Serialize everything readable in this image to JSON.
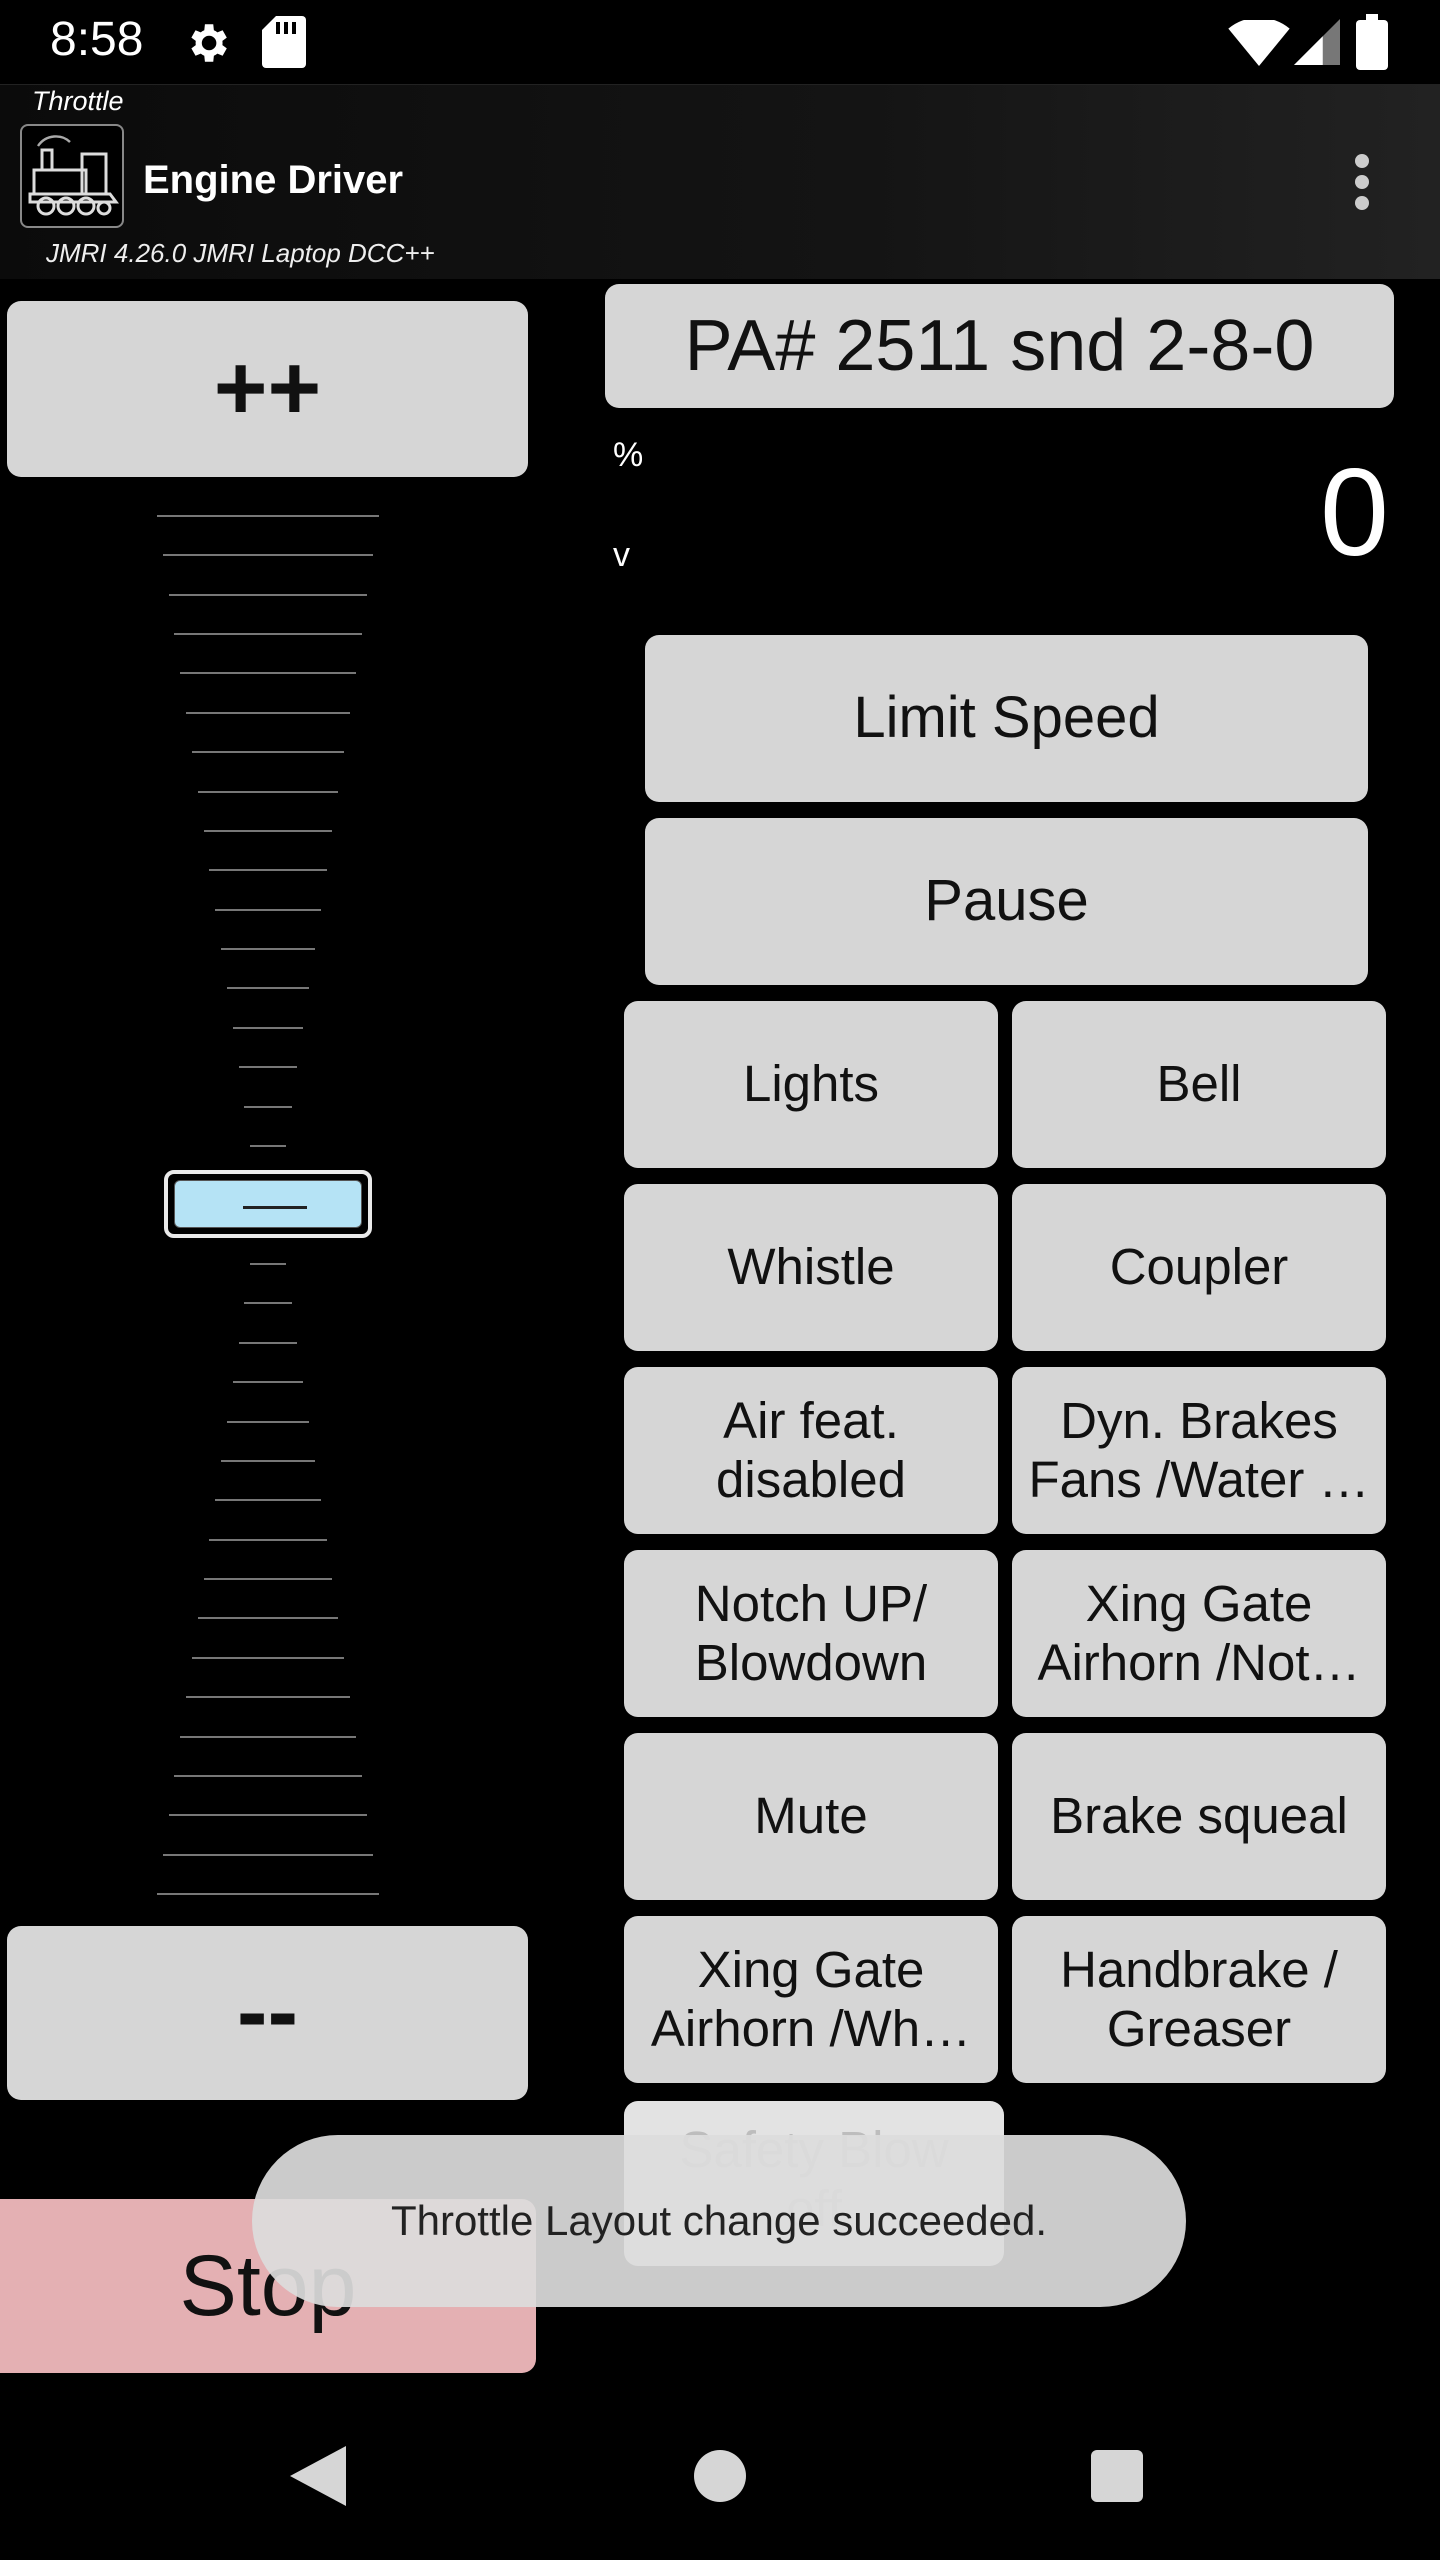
{
  "status_bar": {
    "time": "8:58",
    "icons": [
      "gear-icon",
      "sd-card-icon",
      "wifi-icon",
      "cell-signal-icon",
      "battery-icon"
    ]
  },
  "app_bar": {
    "subtitle": "Throttle",
    "title": "Engine Driver",
    "connection": "JMRI 4.26.0 JMRI Laptop DCC++",
    "logo": "locomotive-logo-icon",
    "menu": "overflow-menu-icon"
  },
  "throttle": {
    "speed_up_label": "++",
    "speed_down_label": "--",
    "stop_label": "Stop",
    "loco_label": "PA# 2511 snd 2-8-0",
    "speed_unit": "%",
    "direction": "v",
    "speed_value": "0",
    "slider_level": 0.5
  },
  "buttons": {
    "limit_speed": "Limit Speed",
    "pause": "Pause"
  },
  "functions": [
    {
      "left": "Lights",
      "right": "Bell"
    },
    {
      "left": "Whistle",
      "right": "Coupler"
    },
    {
      "left_lines": [
        "Air feat.",
        "disabled"
      ],
      "right_lines": [
        "Dyn. Brakes",
        "Fans /Water …"
      ]
    },
    {
      "left_lines": [
        "Notch UP/",
        "Blowdown"
      ],
      "right_lines": [
        "Xing Gate",
        "Airhorn /Not…"
      ]
    },
    {
      "left": "Mute",
      "right": "Brake squeal"
    },
    {
      "left_lines": [
        "Xing Gate",
        "Airhorn /Wh…"
      ],
      "right_lines": [
        "Handbrake /",
        "Greaser"
      ]
    },
    {
      "left_lines": [
        "Safety Blow",
        "off"
      ]
    }
  ],
  "toast": "Throttle Layout change succeeded.",
  "colors": {
    "button": "#d6d6d6",
    "stop": "#e4b0b3",
    "slider_thumb": "#b5e3f5",
    "background": "#000000"
  },
  "nav": [
    "back-icon",
    "home-icon",
    "recents-icon"
  ]
}
